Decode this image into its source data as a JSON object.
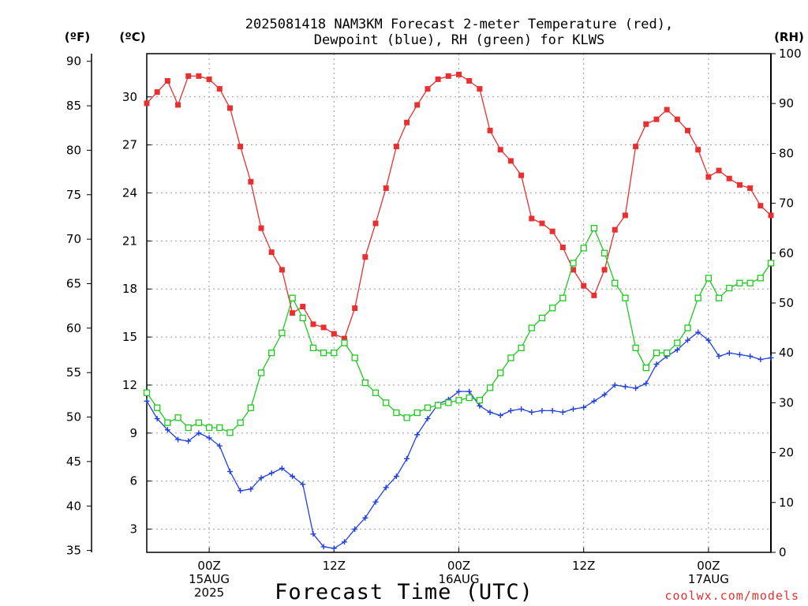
{
  "chart_data": {
    "type": "line",
    "title_lines": [
      "2025081418 NAM3KM Forecast 2-meter Temperature (red),",
      "Dewpoint (blue), RH (green) for KLWS"
    ],
    "xlabel": "Forecast Time (UTC)",
    "credit": "coolwx.com/models",
    "units": {
      "fahrenheit": "(ºF)",
      "celsius": "(ºC)",
      "rh": "(RH)"
    },
    "x_range_hours": [
      -6,
      54
    ],
    "x_ticks": [
      {
        "hour": 0,
        "lines": [
          "00Z",
          "15AUG",
          "2025"
        ]
      },
      {
        "hour": 12,
        "lines": [
          "12Z"
        ]
      },
      {
        "hour": 24,
        "lines": [
          "00Z",
          "16AUG"
        ]
      },
      {
        "hour": 36,
        "lines": [
          "12Z"
        ]
      },
      {
        "hour": 48,
        "lines": [
          "00Z",
          "17AUG"
        ]
      }
    ],
    "y_celsius_range": [
      1.55,
      32.7
    ],
    "y_celsius_ticks": [
      3,
      6,
      9,
      12,
      15,
      18,
      21,
      24,
      27,
      30
    ],
    "y_fahrenheit_ticks": [
      35,
      40,
      45,
      50,
      55,
      60,
      65,
      70,
      75,
      80,
      85,
      90
    ],
    "y_rh_range": [
      0,
      100
    ],
    "y_rh_ticks": [
      0,
      10,
      20,
      30,
      40,
      50,
      60,
      70,
      80,
      90,
      100
    ],
    "grid": true,
    "series": [
      {
        "name": "Temperature",
        "color": "#e83030",
        "marker": "filled-square",
        "axis": "celsius",
        "start_hour": -6,
        "step_hours": 1,
        "values": [
          29.6,
          30.3,
          31.0,
          29.5,
          31.3,
          31.3,
          31.1,
          30.5,
          29.3,
          26.9,
          24.7,
          21.8,
          20.3,
          19.2,
          16.5,
          16.9,
          15.8,
          15.6,
          15.2,
          14.9,
          16.8,
          20.0,
          22.1,
          24.3,
          26.9,
          28.4,
          29.5,
          30.5,
          31.1,
          31.3,
          31.4,
          31.0,
          30.5,
          27.9,
          26.7,
          26.0,
          25.1,
          22.4,
          22.1,
          21.6,
          20.6,
          19.2,
          18.2,
          17.6,
          19.2,
          21.7,
          22.6,
          26.9,
          28.3,
          28.6,
          29.2,
          28.6,
          27.9,
          26.7,
          25.0,
          25.4,
          24.9,
          24.5,
          24.3,
          23.2,
          22.6
        ]
      },
      {
        "name": "Dewpoint",
        "color": "#2040e0",
        "marker": "plus",
        "axis": "celsius",
        "start_hour": -6,
        "step_hours": 1,
        "values": [
          11.0,
          9.9,
          9.2,
          8.6,
          8.5,
          9.0,
          8.7,
          8.2,
          6.6,
          5.4,
          5.5,
          6.2,
          6.5,
          6.8,
          6.3,
          5.8,
          2.7,
          1.9,
          1.8,
          2.2,
          3.0,
          3.7,
          4.7,
          5.6,
          6.3,
          7.4,
          8.9,
          9.9,
          10.8,
          11.1,
          11.6,
          11.6,
          10.7,
          10.3,
          10.1,
          10.4,
          10.5,
          10.3,
          10.4,
          10.4,
          10.3,
          10.5,
          10.6,
          11.0,
          11.4,
          12.0,
          11.9,
          11.8,
          12.1,
          13.3,
          13.8,
          14.2,
          14.8,
          15.3,
          14.8,
          13.8,
          14.0,
          13.9,
          13.8,
          13.6,
          13.7
        ]
      },
      {
        "name": "RH",
        "color": "#20c820",
        "marker": "open-square",
        "axis": "rh",
        "start_hour": -6,
        "step_hours": 1,
        "values": [
          32,
          29,
          26,
          27,
          25,
          26,
          25,
          25,
          24,
          26,
          29,
          36,
          40,
          44,
          51,
          47,
          41,
          40,
          40,
          42,
          39,
          34,
          32,
          30,
          28,
          27,
          28,
          29,
          29.5,
          30,
          30.5,
          31,
          30.5,
          33,
          36,
          39,
          41,
          45,
          47,
          49,
          51,
          58,
          61,
          65,
          60,
          54,
          51,
          41,
          37,
          40,
          40,
          42,
          45,
          51,
          55,
          51,
          53,
          54,
          54,
          55,
          58
        ]
      }
    ]
  }
}
